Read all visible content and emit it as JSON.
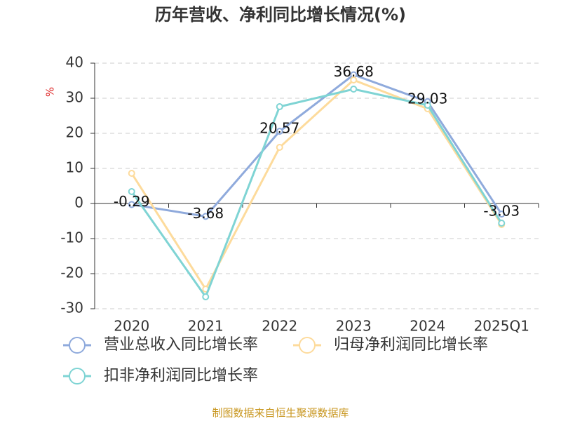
{
  "chart_data": {
    "type": "line",
    "title": "历年营收、净利同比增长情况(%)",
    "y_label": "%",
    "categories": [
      "2020",
      "2021",
      "2022",
      "2023",
      "2024",
      "2025Q1"
    ],
    "series": [
      {
        "name": "营业总收入同比增长率",
        "color": "#8faadc",
        "values": [
          -0.29,
          -3.68,
          20.57,
          36.68,
          29.03,
          -3.03
        ],
        "show_labels": true
      },
      {
        "name": "归母净利润同比增长率",
        "color": "#fddb9c",
        "values": [
          8.6,
          -24.4,
          16,
          35.2,
          27,
          -6
        ],
        "show_labels": false
      },
      {
        "name": "扣非净利润同比增长率",
        "color": "#7fd4d4",
        "values": [
          3.4,
          -26.6,
          27.6,
          32.6,
          28,
          -5.6
        ],
        "show_labels": false
      }
    ],
    "ylim": [
      -30,
      40
    ],
    "yticks": [
      -30,
      -20,
      -10,
      0,
      10,
      20,
      30,
      40
    ],
    "grid": true,
    "source": "制图数据来自恒生聚源数据库"
  }
}
